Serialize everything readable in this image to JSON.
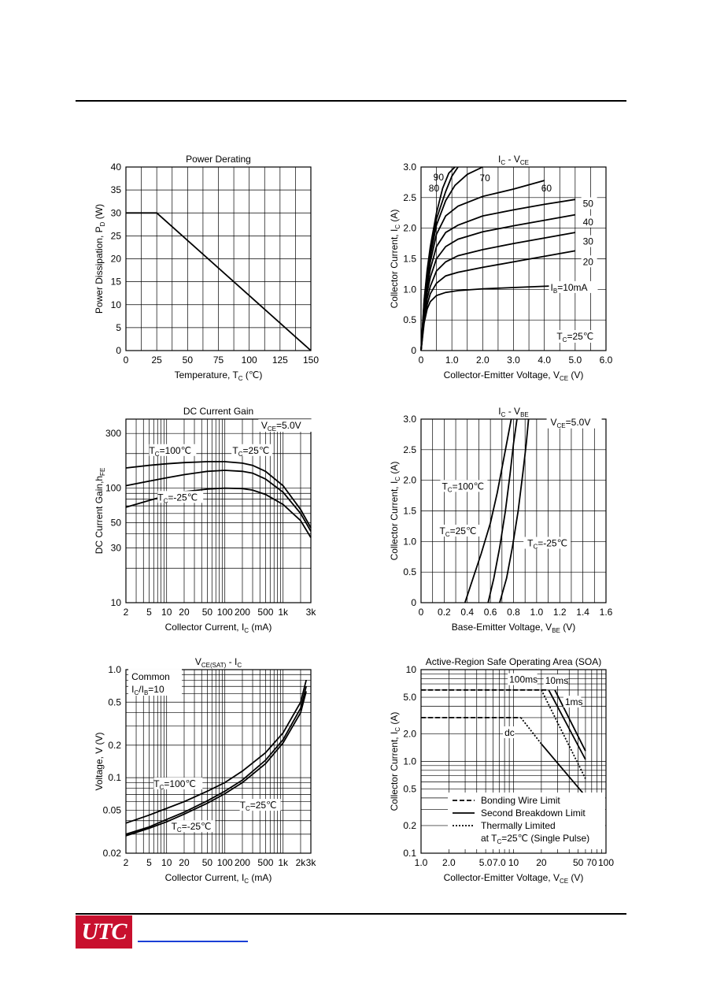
{
  "page": {
    "logo_text": "UTC",
    "link_color": "#1a3fd6",
    "logo_color": "#c8102e"
  },
  "chart_data": [
    {
      "id": "power-derating",
      "type": "line",
      "title": "Power Derating",
      "xlabel": "Temperature, T_C (℃)",
      "ylabel": "Power Dissipation, P_D (W)",
      "xlim": [
        0,
        150
      ],
      "ylim": [
        0,
        40
      ],
      "xticks": [
        0,
        25,
        50,
        75,
        100,
        125,
        150
      ],
      "yticks": [
        0,
        5,
        10,
        15,
        20,
        25,
        30,
        35,
        40
      ],
      "grid": true,
      "series": [
        {
          "x": [
            0,
            25,
            150
          ],
          "y": [
            30,
            30,
            0
          ]
        }
      ]
    },
    {
      "id": "ic-vce",
      "type": "line",
      "title": "I_C - V_CE",
      "xlabel": "Collector-Emitter Voltage, V_CE (V)",
      "ylabel": "Collector Current, I_C (A)",
      "xlim": [
        0,
        6
      ],
      "ylim": [
        0,
        3
      ],
      "xticks": [
        "0",
        "1.0",
        "2.0",
        "3.0",
        "4.0",
        "5.0",
        "6.0"
      ],
      "yticks": [
        "0",
        "0.5",
        "1.0",
        "1.5",
        "2.0",
        "2.5",
        "3.0"
      ],
      "grid": true,
      "annotation": "T_C=25℃",
      "series": [
        {
          "name": "I_B=10mA",
          "x": [
            0,
            0.1,
            0.2,
            0.3,
            0.5,
            0.8,
            1.2,
            2,
            3,
            4,
            5
          ],
          "y": [
            0,
            0.45,
            0.68,
            0.8,
            0.9,
            0.95,
            0.98,
            1.01,
            1.03,
            1.05,
            1.07
          ]
        },
        {
          "name": "20",
          "x": [
            0,
            0.1,
            0.2,
            0.3,
            0.5,
            0.8,
            1.2,
            2,
            3,
            4,
            5
          ],
          "y": [
            0,
            0.5,
            0.75,
            0.93,
            1.1,
            1.22,
            1.28,
            1.36,
            1.45,
            1.54,
            1.63
          ]
        },
        {
          "name": "30",
          "x": [
            0,
            0.1,
            0.2,
            0.3,
            0.5,
            0.8,
            1.2,
            2,
            3,
            4,
            5
          ],
          "y": [
            0,
            0.55,
            0.85,
            1.05,
            1.3,
            1.45,
            1.55,
            1.65,
            1.75,
            1.84,
            1.93
          ]
        },
        {
          "name": "40",
          "x": [
            0,
            0.1,
            0.2,
            0.3,
            0.5,
            0.8,
            1.2,
            2,
            3,
            4,
            5
          ],
          "y": [
            0,
            0.6,
            0.95,
            1.2,
            1.5,
            1.7,
            1.82,
            1.94,
            2.04,
            2.13,
            2.22
          ]
        },
        {
          "name": "50",
          "x": [
            0,
            0.1,
            0.2,
            0.3,
            0.5,
            0.8,
            1.2,
            2,
            3,
            4,
            5
          ],
          "y": [
            0,
            0.65,
            1.05,
            1.33,
            1.7,
            1.93,
            2.05,
            2.2,
            2.3,
            2.39,
            2.47
          ]
        },
        {
          "name": "60",
          "x": [
            0,
            0.1,
            0.2,
            0.3,
            0.5,
            0.8,
            1.2,
            2,
            3,
            4
          ],
          "y": [
            0,
            0.7,
            1.12,
            1.45,
            1.9,
            2.2,
            2.36,
            2.52,
            2.64,
            2.78
          ]
        },
        {
          "name": "70",
          "x": [
            0,
            0.1,
            0.2,
            0.3,
            0.5,
            0.8,
            1.1,
            1.5,
            2.0
          ],
          "y": [
            0,
            0.75,
            1.2,
            1.55,
            2.05,
            2.45,
            2.7,
            2.88,
            3.0
          ]
        },
        {
          "name": "80",
          "x": [
            0,
            0.1,
            0.2,
            0.3,
            0.5,
            0.8,
            1.0,
            1.2
          ],
          "y": [
            0,
            0.8,
            1.28,
            1.63,
            2.15,
            2.6,
            2.85,
            3.0
          ]
        },
        {
          "name": "90",
          "x": [
            0,
            0.1,
            0.2,
            0.3,
            0.5,
            0.7,
            0.9,
            1.1
          ],
          "y": [
            0,
            0.82,
            1.32,
            1.7,
            2.25,
            2.65,
            2.9,
            3.0
          ]
        }
      ],
      "labels": [
        "90",
        "80",
        "70",
        "60",
        "50",
        "40",
        "30",
        "20",
        "I_B=10mA"
      ]
    },
    {
      "id": "dc-current-gain",
      "type": "line",
      "title": "DC Current Gain",
      "xlabel": "Collector Current, I_C (mA)",
      "ylabel": "DC Current Gain,h_FE",
      "xscale": "log",
      "yscale": "log",
      "xlim": [
        2,
        3000
      ],
      "ylim": [
        10,
        400
      ],
      "xticks": [
        "2",
        "5",
        "10",
        "20",
        "50",
        "100",
        "200",
        "500",
        "1k",
        "3k"
      ],
      "yticks": [
        "10",
        "30",
        "50",
        "100",
        "300"
      ],
      "grid": true,
      "annotation": "V_CE=5.0V",
      "series": [
        {
          "name": "T_C=100℃",
          "x": [
            2,
            5,
            10,
            20,
            50,
            100,
            200,
            300,
            500,
            1000,
            2000,
            3000
          ],
          "y": [
            150,
            158,
            163,
            167,
            170,
            170,
            165,
            158,
            140,
            105,
            65,
            45
          ]
        },
        {
          "name": "T_C=25℃",
          "x": [
            2,
            5,
            10,
            20,
            50,
            100,
            200,
            300,
            500,
            1000,
            2000,
            3000
          ],
          "y": [
            105,
            115,
            123,
            131,
            140,
            143,
            140,
            135,
            120,
            92,
            60,
            42
          ]
        },
        {
          "name": "T_C=-25℃",
          "x": [
            2,
            5,
            10,
            20,
            50,
            100,
            200,
            300,
            500,
            1000,
            2000,
            3000
          ],
          "y": [
            68,
            78,
            86,
            93,
            98,
            100,
            99,
            96,
            88,
            72,
            52,
            37
          ]
        }
      ]
    },
    {
      "id": "ic-vbe",
      "type": "line",
      "title": "I_C - V_BE",
      "xlabel": "Base-Emitter Voltage, V_BE (V)",
      "ylabel": "Collector Current, I_C (A)",
      "xlim": [
        0,
        1.6
      ],
      "ylim": [
        0,
        3
      ],
      "xticks": [
        "0",
        "0.2",
        "0.4",
        "0.6",
        "0.8",
        "1.0",
        "1.2",
        "1.4",
        "1.6"
      ],
      "yticks": [
        "0",
        "0.5",
        "1.0",
        "1.5",
        "2.0",
        "2.5",
        "3.0"
      ],
      "grid": true,
      "annotation": "V_CE=5.0V",
      "series": [
        {
          "name": "T_C=100℃",
          "x": [
            0.38,
            0.45,
            0.52,
            0.6,
            0.66,
            0.72,
            0.78
          ],
          "y": [
            0,
            0.4,
            0.8,
            1.3,
            1.8,
            2.4,
            3.0
          ]
        },
        {
          "name": "T_C=25℃",
          "x": [
            0.58,
            0.63,
            0.68,
            0.73,
            0.77,
            0.8,
            0.83
          ],
          "y": [
            0,
            0.4,
            0.9,
            1.5,
            2.1,
            2.6,
            3.0
          ]
        },
        {
          "name": "T_C=-25℃",
          "x": [
            0.68,
            0.74,
            0.79,
            0.84,
            0.88,
            0.91,
            0.93
          ],
          "y": [
            0,
            0.4,
            0.9,
            1.5,
            2.1,
            2.6,
            3.0
          ]
        }
      ]
    },
    {
      "id": "vce-sat-ic",
      "type": "line",
      "title": "V_CE(SAT) - I_C",
      "xlabel": "Collector Current, I_C (mA)",
      "ylabel": "Voltage, V (V)",
      "xscale": "log",
      "yscale": "log",
      "xlim": [
        2,
        3000
      ],
      "ylim": [
        0.02,
        1.0
      ],
      "xticks": [
        "2",
        "5",
        "10",
        "20",
        "50",
        "100",
        "200",
        "500",
        "1k",
        "2k",
        "3k"
      ],
      "yticks": [
        "0.02",
        "0.05",
        "0.1",
        "0.2",
        "0.5",
        "1.0"
      ],
      "grid": true,
      "annotation": [
        "Common",
        "I_C/I_B=10"
      ],
      "series": [
        {
          "name": "T_C=100℃",
          "x": [
            2,
            5,
            10,
            20,
            50,
            100,
            200,
            500,
            1000,
            2000,
            2500
          ],
          "y": [
            0.038,
            0.045,
            0.052,
            0.06,
            0.075,
            0.09,
            0.115,
            0.17,
            0.26,
            0.5,
            0.8
          ]
        },
        {
          "name": "T_C=25℃",
          "x": [
            2,
            5,
            10,
            20,
            50,
            100,
            200,
            500,
            1000,
            2000,
            2500
          ],
          "y": [
            0.03,
            0.035,
            0.041,
            0.048,
            0.061,
            0.075,
            0.095,
            0.145,
            0.225,
            0.44,
            0.7
          ]
        },
        {
          "name": "T_C=-25℃",
          "x": [
            2,
            5,
            10,
            20,
            50,
            100,
            200,
            500,
            1000,
            2000,
            2500
          ],
          "y": [
            0.029,
            0.034,
            0.039,
            0.046,
            0.058,
            0.071,
            0.09,
            0.135,
            0.21,
            0.4,
            0.63
          ]
        }
      ]
    },
    {
      "id": "soa",
      "type": "line",
      "title": "Active-Region Safe Operating Area (SOA)",
      "xlabel": "Collector-Emitter Voltage, V_CE (V)",
      "ylabel": "Collector Current, I_C (A)",
      "xscale": "log",
      "yscale": "log",
      "xlim": [
        1,
        100
      ],
      "ylim": [
        0.1,
        10
      ],
      "xticks": [
        "1.0",
        "2.0",
        "5.0",
        "7.0",
        "10",
        "20",
        "50",
        "70",
        "100"
      ],
      "yticks": [
        "0.1",
        "0.2",
        "0.5",
        "1.0",
        "2.0",
        "5.0",
        "10"
      ],
      "grid": true,
      "legend": [
        "Bonding Wire Limit",
        "Second Breakdown Limit",
        "Thermally Limited",
        "at T_C=25℃ (Single Pulse)"
      ],
      "curve_labels": [
        "100ms",
        "10ms",
        "1ms",
        "dc"
      ],
      "series": [
        {
          "name": "Bonding Wire Limit",
          "style": "dashed",
          "x": [
            1,
            24
          ],
          "y": [
            6,
            6
          ]
        },
        {
          "name": "Bonding Wire Limit",
          "style": "dashed",
          "x": [
            1,
            12
          ],
          "y": [
            3,
            3
          ]
        },
        {
          "name": "Second Breakdown Limit",
          "style": "solid",
          "x": [
            24,
            60
          ],
          "y": [
            6,
            1.05
          ]
        },
        {
          "name": "Second Breakdown Limit",
          "style": "solid",
          "x": [
            28,
            60
          ],
          "y": [
            6,
            1.3
          ]
        },
        {
          "name": "Second Breakdown Limit",
          "style": "solid",
          "x": [
            20,
            60
          ],
          "y": [
            1.55,
            0.42
          ]
        },
        {
          "name": "Thermally Limited",
          "style": "dotted",
          "x": [
            20,
            60
          ],
          "y": [
            6,
            0.65
          ]
        },
        {
          "name": "Thermally Limited",
          "style": "dotted",
          "x": [
            12,
            20
          ],
          "y": [
            3,
            1.55
          ]
        }
      ]
    }
  ]
}
